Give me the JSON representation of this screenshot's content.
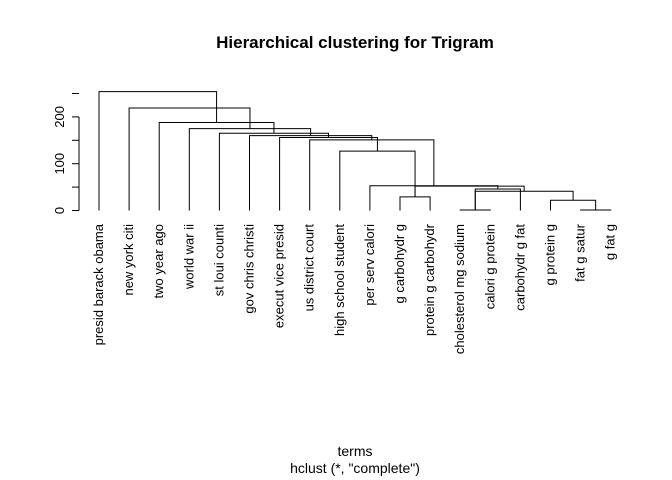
{
  "chart_data": {
    "type": "dendrogram",
    "title": "Hierarchical clustering for Trigram",
    "xlabel": "terms",
    "sub": "hclust (*, \"complete\")",
    "ylim": [
      0,
      260
    ],
    "yticks": [
      0,
      100,
      200
    ],
    "leaves": [
      "presid barack obama",
      "new york citi",
      "two year ago",
      "world war ii",
      "st loui counti",
      "gov chris christi",
      "execut vice presid",
      "us district court",
      "high school student",
      "per serv calori",
      "g carbohydr g",
      "protein g carbohydr",
      "cholesterol mg sodium",
      "calori g protein",
      "carbohydr g fat",
      "g protein g",
      "fat g satur",
      "g fat g"
    ],
    "merges": [
      {
        "id": "m1",
        "a": "L13",
        "b": "L14",
        "height": 1
      },
      {
        "id": "m2",
        "a": "L17",
        "b": "L18",
        "height": 1
      },
      {
        "id": "m3",
        "a": "L16",
        "b": "L17",
        "height": 22
      },
      {
        "id": "m4",
        "a": "L11",
        "b": "L12",
        "height": 29
      },
      {
        "id": "m5",
        "a": "L14",
        "b": "L16",
        "height": 41
      },
      {
        "id": "m6",
        "a": "L13",
        "b": "L15",
        "height": 46
      },
      {
        "id": "m7",
        "a": "L12",
        "b": "L14",
        "height": 52
      },
      {
        "id": "m8",
        "a": "L10",
        "b": "L13",
        "height": 53
      },
      {
        "id": "m9",
        "a": "L9",
        "b": "L11",
        "height": 127
      },
      {
        "id": "m10",
        "a": "L8",
        "b": "L10",
        "height": 151
      },
      {
        "id": "m11",
        "a": "L7",
        "b": "L9",
        "height": 156
      },
      {
        "id": "m12",
        "a": "L6",
        "b": "L8",
        "height": 160
      },
      {
        "id": "m13",
        "a": "L5",
        "b": "L7",
        "height": 165
      },
      {
        "id": "m14",
        "a": "L4",
        "b": "L6",
        "height": 175
      },
      {
        "id": "m15",
        "a": "L3",
        "b": "L5",
        "height": 188
      },
      {
        "id": "m16",
        "a": "L2",
        "b": "L4",
        "height": 219
      },
      {
        "id": "m17",
        "a": "L1",
        "b": "L3",
        "height": 254
      }
    ]
  }
}
